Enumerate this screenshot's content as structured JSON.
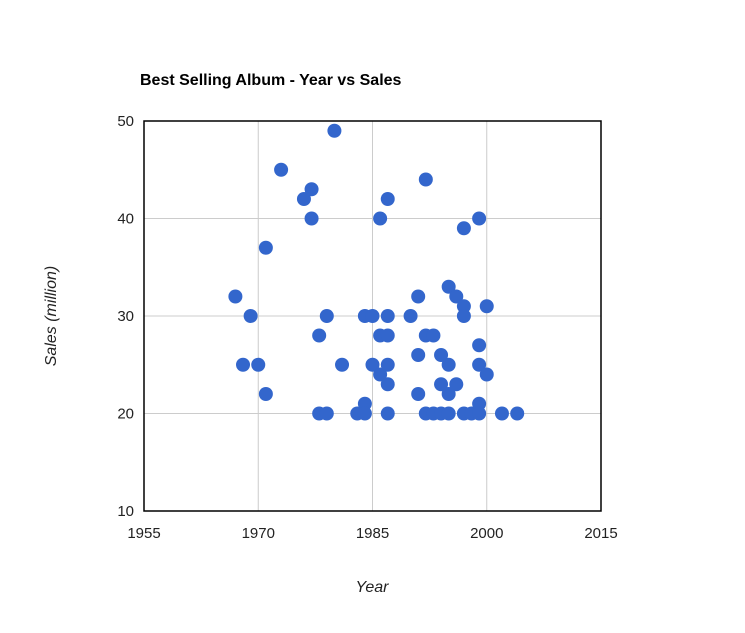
{
  "chart_data": {
    "type": "scatter",
    "title": "Best Selling Album - Year vs Sales",
    "xlabel": "Year",
    "ylabel": "Sales (million)",
    "xlim": [
      1955,
      2015
    ],
    "ylim": [
      10,
      50
    ],
    "xticks": [
      "1955",
      "1970",
      "1985",
      "2000",
      "2015"
    ],
    "yticks": [
      "10",
      "20",
      "30",
      "40",
      "50"
    ],
    "grid": true,
    "legend": "none",
    "marker_color": "#3366cc",
    "points": [
      {
        "x": 1967,
        "y": 32
      },
      {
        "x": 1968,
        "y": 25
      },
      {
        "x": 1969,
        "y": 30
      },
      {
        "x": 1970,
        "y": 25
      },
      {
        "x": 1971,
        "y": 37
      },
      {
        "x": 1971,
        "y": 22
      },
      {
        "x": 1973,
        "y": 45
      },
      {
        "x": 1976,
        "y": 42
      },
      {
        "x": 1977,
        "y": 43
      },
      {
        "x": 1977,
        "y": 40
      },
      {
        "x": 1978,
        "y": 28
      },
      {
        "x": 1978,
        "y": 20
      },
      {
        "x": 1979,
        "y": 30
      },
      {
        "x": 1979,
        "y": 20
      },
      {
        "x": 1980,
        "y": 49
      },
      {
        "x": 1981,
        "y": 25
      },
      {
        "x": 1983,
        "y": 20
      },
      {
        "x": 1984,
        "y": 30
      },
      {
        "x": 1984,
        "y": 21
      },
      {
        "x": 1984,
        "y": 20
      },
      {
        "x": 1985,
        "y": 30
      },
      {
        "x": 1985,
        "y": 25
      },
      {
        "x": 1986,
        "y": 40
      },
      {
        "x": 1986,
        "y": 28
      },
      {
        "x": 1986,
        "y": 24
      },
      {
        "x": 1987,
        "y": 42
      },
      {
        "x": 1987,
        "y": 30
      },
      {
        "x": 1987,
        "y": 28
      },
      {
        "x": 1987,
        "y": 25
      },
      {
        "x": 1987,
        "y": 23
      },
      {
        "x": 1987,
        "y": 20
      },
      {
        "x": 1990,
        "y": 30
      },
      {
        "x": 1991,
        "y": 32
      },
      {
        "x": 1991,
        "y": 26
      },
      {
        "x": 1991,
        "y": 22
      },
      {
        "x": 1992,
        "y": 44
      },
      {
        "x": 1992,
        "y": 28
      },
      {
        "x": 1992,
        "y": 20
      },
      {
        "x": 1993,
        "y": 28
      },
      {
        "x": 1993,
        "y": 20
      },
      {
        "x": 1994,
        "y": 26
      },
      {
        "x": 1994,
        "y": 23
      },
      {
        "x": 1994,
        "y": 20
      },
      {
        "x": 1995,
        "y": 33
      },
      {
        "x": 1995,
        "y": 25
      },
      {
        "x": 1995,
        "y": 22
      },
      {
        "x": 1995,
        "y": 20
      },
      {
        "x": 1996,
        "y": 32
      },
      {
        "x": 1996,
        "y": 23
      },
      {
        "x": 1997,
        "y": 39
      },
      {
        "x": 1997,
        "y": 31
      },
      {
        "x": 1997,
        "y": 30
      },
      {
        "x": 1997,
        "y": 20
      },
      {
        "x": 1998,
        "y": 20
      },
      {
        "x": 1999,
        "y": 40
      },
      {
        "x": 1999,
        "y": 27
      },
      {
        "x": 1999,
        "y": 25
      },
      {
        "x": 1999,
        "y": 21
      },
      {
        "x": 1999,
        "y": 20
      },
      {
        "x": 2000,
        "y": 31
      },
      {
        "x": 2000,
        "y": 24
      },
      {
        "x": 2002,
        "y": 20
      },
      {
        "x": 2004,
        "y": 20
      }
    ]
  }
}
